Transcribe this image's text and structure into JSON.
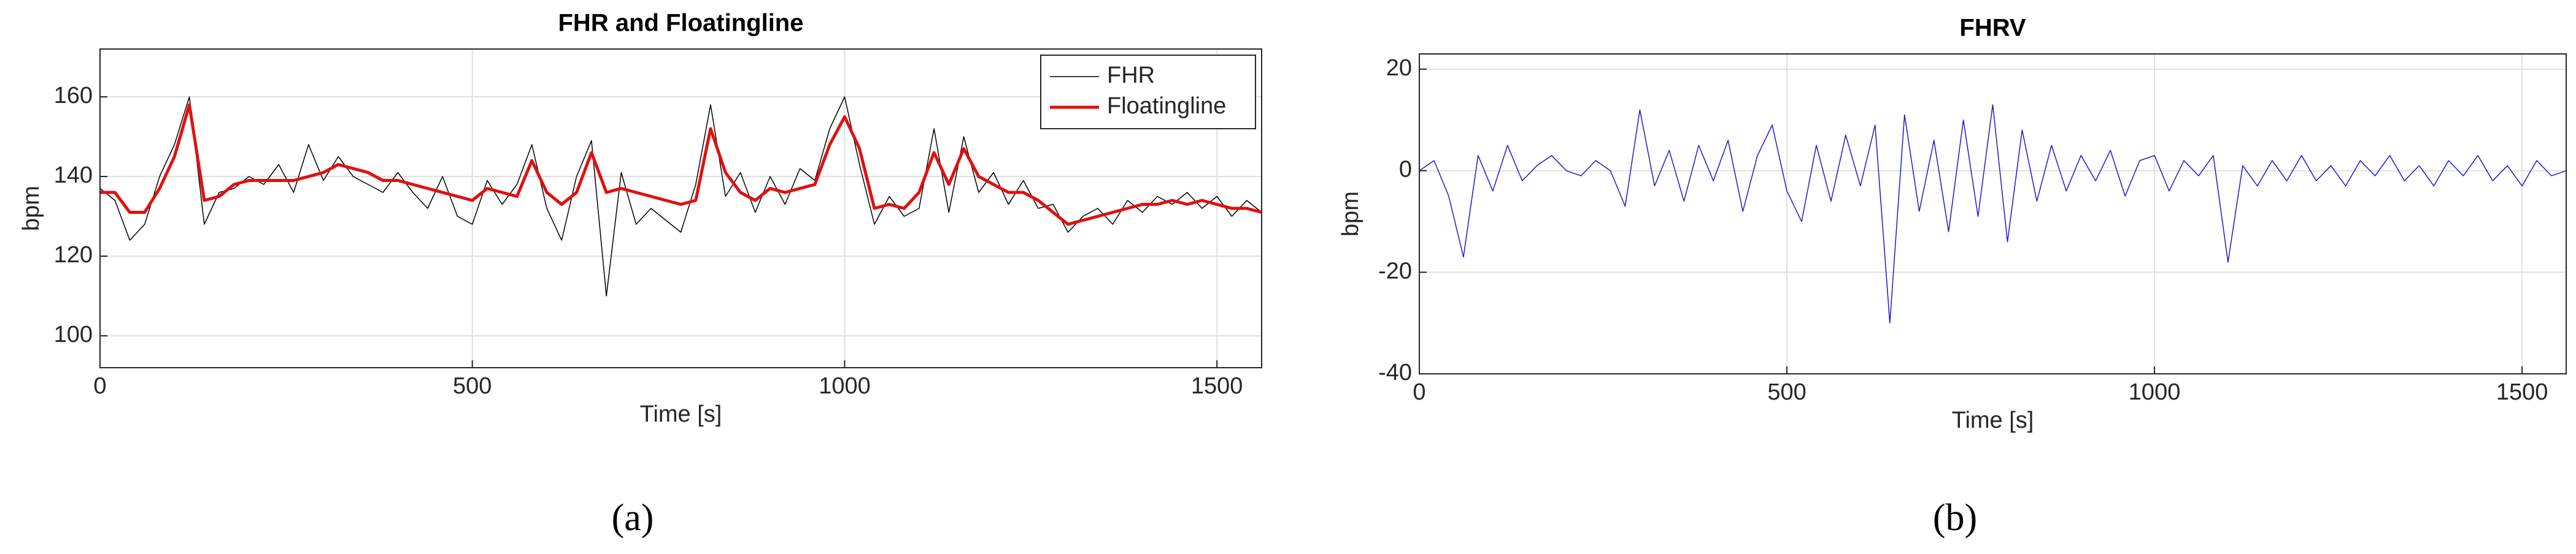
{
  "chart_data": [
    {
      "type": "line",
      "title": "FHR and Floatingline",
      "xlabel": "Time [s]",
      "ylabel": "bpm",
      "x": [
        0,
        20,
        40,
        60,
        80,
        100,
        120,
        140,
        160,
        180,
        200,
        220,
        240,
        260,
        280,
        300,
        320,
        340,
        360,
        380,
        400,
        420,
        440,
        460,
        480,
        500,
        520,
        540,
        560,
        580,
        600,
        620,
        640,
        660,
        680,
        700,
        720,
        740,
        760,
        780,
        800,
        820,
        840,
        860,
        880,
        900,
        920,
        940,
        960,
        980,
        1000,
        1020,
        1040,
        1060,
        1080,
        1100,
        1120,
        1140,
        1160,
        1180,
        1200,
        1220,
        1240,
        1260,
        1280,
        1300,
        1320,
        1340,
        1360,
        1380,
        1400,
        1420,
        1440,
        1460,
        1480,
        1500,
        1520,
        1540,
        1560
      ],
      "series": [
        {
          "name": "FHR",
          "color": "#000000",
          "width": 1.5,
          "values": [
            137,
            134,
            124,
            128,
            140,
            148,
            160,
            128,
            136,
            137,
            140,
            138,
            143,
            136,
            148,
            139,
            145,
            140,
            138,
            136,
            141,
            136,
            132,
            140,
            130,
            128,
            139,
            133,
            138,
            148,
            132,
            124,
            140,
            149,
            110,
            141,
            128,
            132,
            129,
            126,
            138,
            158,
            135,
            141,
            131,
            140,
            133,
            142,
            139,
            152,
            160,
            143,
            128,
            135,
            130,
            132,
            152,
            131,
            150,
            136,
            141,
            133,
            139,
            132,
            133,
            126,
            130,
            132,
            128,
            134,
            131,
            135,
            133,
            136,
            132,
            135,
            130,
            134,
            131
          ]
        },
        {
          "name": "Floatingline",
          "color": "#e01010",
          "width": 5,
          "values": [
            136,
            136,
            131,
            131,
            137,
            145,
            158,
            134,
            135,
            138,
            139,
            139,
            139,
            139,
            140,
            141,
            143,
            142,
            141,
            139,
            139,
            138,
            137,
            136,
            135,
            134,
            137,
            136,
            135,
            144,
            136,
            133,
            136,
            146,
            136,
            137,
            136,
            135,
            134,
            133,
            134,
            152,
            141,
            136,
            134,
            137,
            136,
            137,
            138,
            148,
            155,
            147,
            132,
            133,
            132,
            136,
            146,
            138,
            147,
            140,
            138,
            136,
            136,
            134,
            131,
            128,
            129,
            130,
            131,
            132,
            133,
            133,
            134,
            133,
            134,
            133,
            132,
            132,
            131
          ]
        }
      ],
      "xlim": [
        0,
        1560
      ],
      "ylim": [
        92,
        172
      ],
      "xticks": [
        0,
        500,
        1000,
        1500
      ],
      "yticks": [
        100,
        120,
        140,
        160
      ],
      "grid": true,
      "legend": "upper right"
    },
    {
      "type": "line",
      "title": "FHRV",
      "xlabel": "Time [s]",
      "ylabel": "bpm",
      "x": [
        0,
        20,
        40,
        60,
        80,
        100,
        120,
        140,
        160,
        180,
        200,
        220,
        240,
        260,
        280,
        300,
        320,
        340,
        360,
        380,
        400,
        420,
        440,
        460,
        480,
        500,
        520,
        540,
        560,
        580,
        600,
        620,
        640,
        660,
        680,
        700,
        720,
        740,
        760,
        780,
        800,
        820,
        840,
        860,
        880,
        900,
        920,
        940,
        960,
        980,
        1000,
        1020,
        1040,
        1060,
        1080,
        1100,
        1120,
        1140,
        1160,
        1180,
        1200,
        1220,
        1240,
        1260,
        1280,
        1300,
        1320,
        1340,
        1360,
        1380,
        1400,
        1420,
        1440,
        1460,
        1480,
        1500,
        1520,
        1540,
        1560
      ],
      "series": [
        {
          "color": "#1a1acc",
          "width": 1.5,
          "values": [
            0,
            2,
            -5,
            -17,
            3,
            -4,
            5,
            -2,
            1,
            3,
            0,
            -1,
            2,
            0,
            -7,
            12,
            -3,
            4,
            -6,
            5,
            -2,
            6,
            -8,
            3,
            9,
            -4,
            -10,
            5,
            -6,
            7,
            -3,
            9,
            -30,
            11,
            -8,
            6,
            -12,
            10,
            -9,
            13,
            -14,
            8,
            -6,
            5,
            -4,
            3,
            -2,
            4,
            -5,
            2,
            3,
            -4,
            2,
            -1,
            3,
            -18,
            1,
            -3,
            2,
            -2,
            3,
            -2,
            1,
            -3,
            2,
            -1,
            3,
            -2,
            1,
            -3,
            2,
            -1,
            3,
            -2,
            1,
            -3,
            2,
            -1,
            0
          ]
        }
      ],
      "xlim": [
        0,
        1560
      ],
      "ylim": [
        -40,
        23
      ],
      "xticks": [
        0,
        500,
        1000,
        1500
      ],
      "yticks": [
        -40,
        -20,
        0,
        20
      ],
      "grid": true
    }
  ],
  "captions": [
    "(a)",
    "(b)"
  ]
}
